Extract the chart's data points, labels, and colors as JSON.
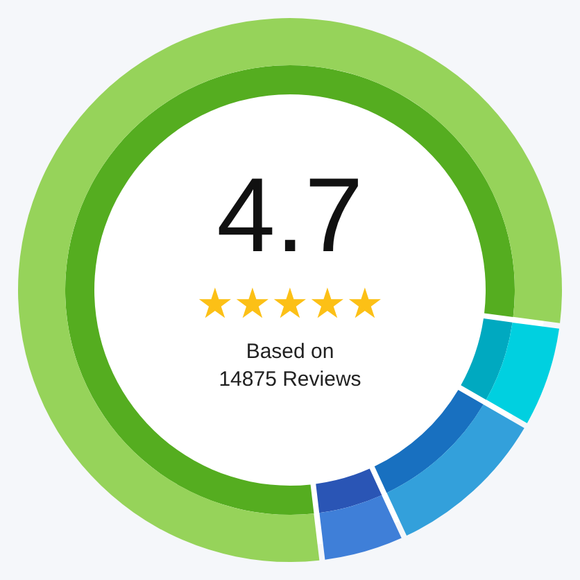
{
  "chart_data": {
    "type": "donut",
    "title": "4.7",
    "categories": [
      null,
      null,
      null,
      null
    ],
    "series": [
      {
        "values": [
          79.0,
          6.2,
          9.8,
          5.0
        ],
        "colors": [
          "#55ad20",
          "#00a9c0",
          "#1870c0",
          "#2a55b5"
        ]
      },
      {
        "values": [
          79.0,
          6.2,
          9.8,
          5.0
        ],
        "colors": [
          "#96d35a",
          "#00d0e0",
          "#33a0db",
          "#3f7fd8"
        ]
      }
    ],
    "annotations": [
      "★★★★★",
      "Based on",
      "14875 Reviews"
    ]
  }
}
